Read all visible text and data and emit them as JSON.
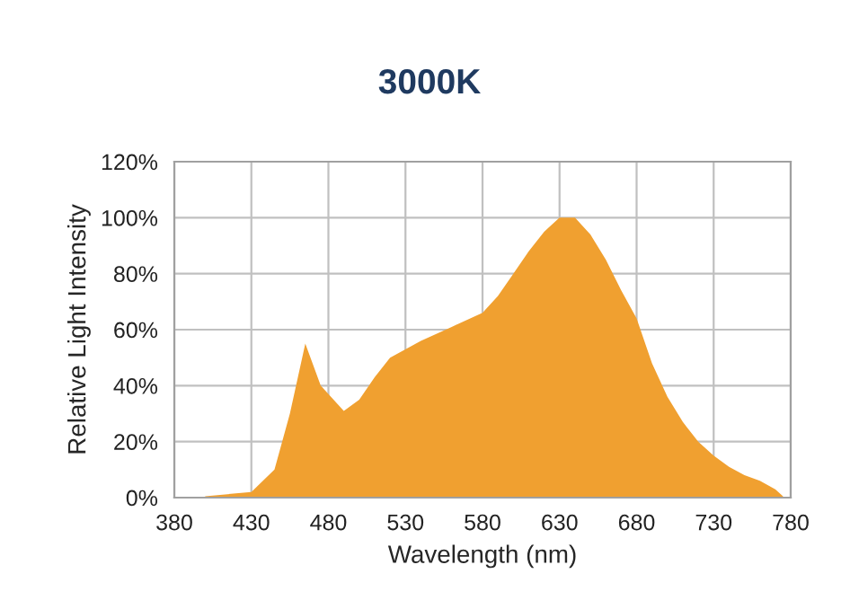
{
  "chart_data": {
    "type": "area",
    "title": "3000K",
    "xlabel": "Wavelength (nm)",
    "ylabel": "Relative Light Intensity",
    "x": [
      400,
      430,
      445,
      455,
      465,
      475,
      490,
      500,
      510,
      520,
      540,
      560,
      580,
      590,
      600,
      610,
      620,
      630,
      640,
      650,
      660,
      670,
      680,
      690,
      700,
      710,
      720,
      730,
      740,
      750,
      760,
      770,
      775
    ],
    "series": [
      {
        "values": [
          0.5,
          2,
          10,
          30,
          55,
          40,
          31,
          35,
          43,
          50,
          56,
          61,
          66,
          72,
          80,
          88,
          95,
          100,
          100,
          94,
          85,
          74,
          64,
          48,
          36,
          27,
          20,
          15,
          11,
          8,
          6,
          3,
          0.5
        ],
        "color": "#f0a030"
      }
    ],
    "xlim": [
      380,
      780
    ],
    "xticks": [
      380,
      430,
      480,
      530,
      580,
      630,
      680,
      730,
      780
    ],
    "ylim": [
      0,
      120
    ],
    "yticks": [
      {
        "value": 0,
        "label": "0%"
      },
      {
        "value": 20,
        "label": "20%"
      },
      {
        "value": 40,
        "label": "40%"
      },
      {
        "value": 60,
        "label": "60%"
      },
      {
        "value": 80,
        "label": "80%"
      },
      {
        "value": 100,
        "label": "100%"
      },
      {
        "value": 120,
        "label": "120%"
      }
    ],
    "grid": true
  }
}
